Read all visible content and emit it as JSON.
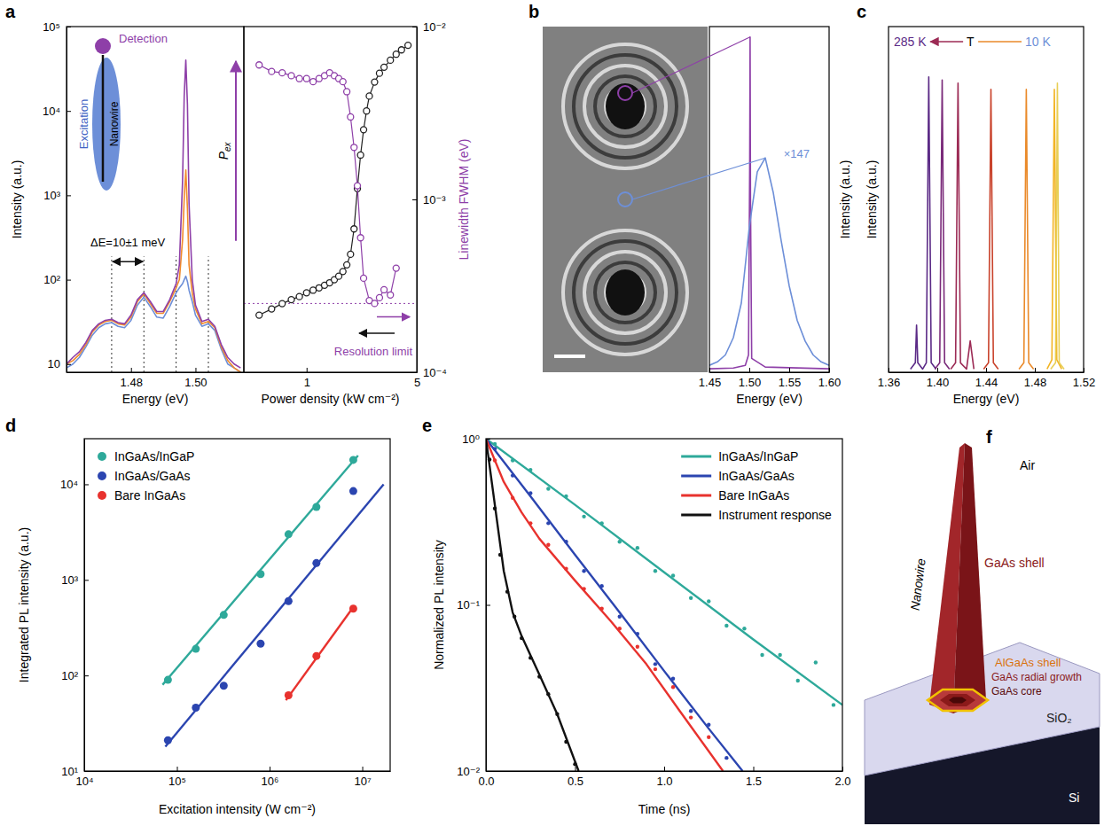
{
  "chart_data": [
    {
      "label": "a",
      "type": "line",
      "x_label": "Energy (eV)",
      "y_label": "Intensity (a.u.)",
      "log": "y",
      "xlim": [
        1.46,
        1.515
      ],
      "xticks": [
        1.48,
        {
          "value": 1.5,
          "label": "1.50"
        }
      ],
      "ylim": [
        8,
        100000
      ],
      "yticks": [
        10,
        {
          "value": 100,
          "label": "10²"
        },
        {
          "value": 1000,
          "label": "10³"
        },
        {
          "value": 10000,
          "label": "10⁴"
        },
        {
          "value": 100000,
          "label": "10⁵"
        }
      ],
      "x": [
        1.46,
        1.462,
        1.464,
        1.466,
        1.468,
        1.47,
        1.472,
        1.474,
        1.476,
        1.478,
        1.48,
        1.482,
        1.484,
        1.486,
        1.488,
        1.49,
        1.492,
        1.494,
        1.495,
        1.496,
        1.4965,
        1.497,
        1.4975,
        1.498,
        1.499,
        1.5,
        1.502,
        1.504,
        1.506,
        1.508,
        1.51,
        1.512,
        1.514
      ],
      "series": [
        {
          "color": "#6d8fd8",
          "values": [
            9,
            10,
            12,
            16,
            22,
            27,
            30,
            31,
            28,
            27,
            33,
            50,
            62,
            48,
            36,
            35,
            48,
            70,
            80,
            90,
            100,
            110,
            95,
            75,
            55,
            38,
            28,
            30,
            25,
            15,
            10,
            9,
            8
          ]
        },
        {
          "color": "#f08a2c",
          "values": [
            10,
            11,
            13,
            17,
            24,
            29,
            32,
            33,
            30,
            29,
            36,
            55,
            68,
            52,
            40,
            40,
            55,
            80,
            100,
            300,
            900,
            2000,
            700,
            150,
            70,
            45,
            30,
            32,
            27,
            16,
            11,
            9,
            8
          ]
        },
        {
          "color": "#8e3fa8",
          "values": [
            10,
            12,
            14,
            18,
            25,
            30,
            33,
            34,
            31,
            30,
            38,
            58,
            70,
            55,
            42,
            42,
            58,
            90,
            150,
            1500,
            15000,
            40000,
            12000,
            800,
            100,
            50,
            32,
            34,
            28,
            17,
            12,
            10,
            9
          ]
        }
      ],
      "peak_energies": [
        1.474,
        1.484,
        1.494,
        1.504
      ],
      "annotation": "ΔE=10±1 meV",
      "inset": {
        "detection": "Detection",
        "excitation": "Excitation",
        "nanowire": "Nanowire",
        "power": "P",
        "power_subscript": "ex"
      }
    },
    {
      "type": "scatter",
      "log": true,
      "marker": "open-circle",
      "line_style": "solid",
      "x_label": "Power density (kW cm⁻²)",
      "y2_label": "Linewidth FWHM (eV)",
      "xlim": [
        0.4,
        5
      ],
      "xticks": [
        1,
        5
      ],
      "ylim": [
        8,
        100000
      ],
      "y2lim": [
        0.0001,
        0.01
      ],
      "y2ticks": [
        {
          "value": 0.0001,
          "label": "10⁻⁴"
        },
        {
          "value": 0.001,
          "label": "10⁻³"
        },
        {
          "value": 0.01,
          "label": "10⁻²"
        }
      ],
      "series": [
        {
          "color": "#222222",
          "x": [
            0.5,
            0.6,
            0.7,
            0.8,
            0.9,
            1,
            1.1,
            1.2,
            1.3,
            1.4,
            1.5,
            1.6,
            1.7,
            1.8,
            1.9,
            2,
            2.1,
            2.2,
            2.3,
            2.4,
            2.5,
            2.7,
            2.9,
            3.1,
            3.4,
            3.7,
            4,
            4.4
          ],
          "values": [
            38,
            45,
            52,
            58,
            63,
            70,
            75,
            80,
            86,
            92,
            100,
            110,
            125,
            150,
            200,
            400,
            1200,
            3000,
            6000,
            10000,
            15000,
            22000,
            28000,
            33000,
            40000,
            47000,
            53000,
            60000
          ]
        },
        {
          "color": "#8e3fa8",
          "axis": "y2",
          "x": [
            0.5,
            0.6,
            0.7,
            0.8,
            0.9,
            1,
            1.1,
            1.2,
            1.3,
            1.4,
            1.5,
            1.6,
            1.7,
            1.8,
            1.9,
            2,
            2.1,
            2.2,
            2.3,
            2.5,
            2.7,
            2.9,
            3.1,
            3.4,
            3.7
          ],
          "values": [
            0.006,
            0.0055,
            0.0054,
            0.0052,
            0.005,
            0.005,
            0.0048,
            0.005,
            0.0052,
            0.0054,
            0.0052,
            0.005,
            0.0048,
            0.0042,
            0.003,
            0.002,
            0.0012,
            0.0006,
            0.00035,
            0.00026,
            0.00025,
            0.00027,
            0.0003,
            0.00028,
            0.0004
          ]
        }
      ],
      "resolution_limit": 0.00025,
      "annotation": "Resolution limit"
    },
    {
      "label": "b",
      "type": "line",
      "x_label": "Energy (eV)",
      "y_label": "Intensity (a.u.)",
      "xlim": [
        1.45,
        1.6
      ],
      "xticks": [
        1.45,
        {
          "value": 1.5,
          "label": "1.50"
        },
        1.55,
        {
          "value": 1.6,
          "label": "1.60"
        }
      ],
      "ylim": [
        0,
        1
      ],
      "tick_labels": "x",
      "series": [
        {
          "color": "#8e3fa8",
          "x": [
            1.45,
            1.48,
            1.495,
            1.499,
            1.5005,
            1.501,
            1.5015,
            1.503,
            1.52,
            1.6
          ],
          "values": [
            0.01,
            0.012,
            0.02,
            0.05,
            0.6,
            0.97,
            0.5,
            0.04,
            0.015,
            0.01
          ]
        },
        {
          "color": "#6d8fd8",
          "x": [
            1.45,
            1.46,
            1.47,
            1.48,
            1.49,
            1.5,
            1.51,
            1.52,
            1.53,
            1.54,
            1.55,
            1.56,
            1.57,
            1.58,
            1.59,
            1.6
          ],
          "values": [
            0.02,
            0.03,
            0.05,
            0.1,
            0.2,
            0.42,
            0.58,
            0.62,
            0.52,
            0.38,
            0.25,
            0.15,
            0.09,
            0.05,
            0.03,
            0.02
          ],
          "scale_label": "×147"
        }
      ]
    },
    {
      "label": "c",
      "type": "line",
      "x_label": "Energy (eV)",
      "y_label": "Intensity (a.u.)",
      "xlim": [
        1.36,
        1.52
      ],
      "xticks": [
        1.36,
        {
          "value": 1.4,
          "label": "1.40"
        },
        1.44,
        1.48,
        1.52
      ],
      "ylim": [
        0,
        1.1
      ],
      "tick_labels": "x",
      "annotations": [
        "285 K",
        "T",
        "10 K"
      ],
      "series": [
        {
          "color": "#5b2a86",
          "x": [
            1.378,
            1.382,
            1.383,
            1.384,
            1.388,
            1.391,
            1.393,
            1.395,
            1.399
          ],
          "values": [
            0.01,
            0.03,
            0.15,
            0.03,
            0.01,
            0.03,
            0.94,
            0.03,
            0.01
          ]
        },
        {
          "color": "#7a2a7a",
          "x": [
            1.398,
            1.402,
            1.404,
            1.406,
            1.41
          ],
          "values": [
            0.01,
            0.03,
            0.93,
            0.03,
            0.01
          ]
        },
        {
          "color": "#9c2b55",
          "x": [
            1.411,
            1.415,
            1.417,
            1.419,
            1.424,
            1.427,
            1.43
          ],
          "values": [
            0.01,
            0.03,
            0.92,
            0.03,
            0.01,
            0.1,
            0.01
          ]
        },
        {
          "color": "#c9432c",
          "x": [
            1.438,
            1.442,
            1.444,
            1.446,
            1.45
          ],
          "values": [
            0.01,
            0.03,
            0.9,
            0.03,
            0.01
          ]
        },
        {
          "color": "#ea8a2a",
          "x": [
            1.467,
            1.471,
            1.473,
            1.475,
            1.479
          ],
          "values": [
            0.01,
            0.03,
            0.9,
            0.03,
            0.01
          ]
        },
        {
          "color": "#f2b424",
          "x": [
            1.49,
            1.494,
            1.496,
            1.498,
            1.502
          ],
          "values": [
            0.01,
            0.04,
            0.9,
            0.04,
            0.01
          ]
        },
        {
          "color": "#e8cf55",
          "x": [
            1.493,
            1.497,
            1.4985,
            1.5,
            1.504
          ],
          "values": [
            0.01,
            0.03,
            0.92,
            0.03,
            0.01
          ]
        }
      ]
    },
    {
      "label": "d",
      "type": "scatter",
      "log": true,
      "marker": "circle",
      "legend": "upper left",
      "x_label": "Excitation intensity (W cm⁻²)",
      "y_label": "Integrated PL intensity (a.u.)",
      "xlim": [
        10000,
        20000000
      ],
      "xticks": [
        {
          "value": 10000,
          "label": "10⁴"
        },
        {
          "value": 100000,
          "label": "10⁵"
        },
        {
          "value": 1000000,
          "label": "10⁶"
        },
        {
          "value": 10000000,
          "label": "10⁷"
        }
      ],
      "ylim": [
        10,
        30000
      ],
      "yticks": [
        {
          "value": 10,
          "label": "10¹"
        },
        {
          "value": 100,
          "label": "10²"
        },
        {
          "value": 1000,
          "label": "10³"
        },
        {
          "value": 10000,
          "label": "10⁴"
        }
      ],
      "series": [
        {
          "name": "InGaAs/InGaP",
          "color": "#2ea99a",
          "x": [
            80000,
            160000,
            320000,
            800000,
            1600000,
            3200000,
            8000000
          ],
          "values": [
            90,
            190,
            430,
            1150,
            3000,
            5800,
            18000
          ],
          "fit_x": [
            70000,
            9000000
          ],
          "fit_values": [
            80,
            20000
          ]
        },
        {
          "name": "InGaAs/GaAs",
          "color": "#2b45b0",
          "x": [
            80000,
            160000,
            320000,
            800000,
            1600000,
            3200000,
            8000000
          ],
          "values": [
            21,
            46,
            78,
            215,
            600,
            1500,
            8500
          ],
          "fit_x": [
            75000,
            17000000
          ],
          "fit_values": [
            18,
            10000
          ]
        },
        {
          "name": "Bare InGaAs",
          "color": "#e8322e",
          "x": [
            1600000,
            3200000,
            8000000
          ],
          "values": [
            62,
            160,
            500
          ],
          "fit_x": [
            1500000,
            8000000
          ],
          "fit_values": [
            55,
            520
          ]
        }
      ]
    },
    {
      "label": "e",
      "type": "scatter",
      "log": "y",
      "marker": "circle",
      "legend": "upper right",
      "x_label": "Time (ns)",
      "y_label": "Normalized PL intensity",
      "xlim": [
        0,
        2
      ],
      "xticks": [
        {
          "value": 0,
          "label": "0.0"
        },
        0.5,
        {
          "value": 1,
          "label": "1.0"
        },
        1.5,
        {
          "value": 2,
          "label": "2.0"
        }
      ],
      "ylim": [
        0.01,
        1
      ],
      "yticks": [
        {
          "value": 0.01,
          "label": "10⁻²"
        },
        {
          "value": 0.1,
          "label": "10⁻¹"
        },
        {
          "value": 1,
          "label": "10⁰"
        }
      ],
      "series": [
        {
          "name": "InGaAs/InGaP",
          "color": "#2ea99a",
          "x": [
            0.05,
            0.15,
            0.25,
            0.35,
            0.45,
            0.55,
            0.65,
            0.75,
            0.85,
            0.95,
            1.05,
            1.15,
            1.25,
            1.35,
            1.45,
            1.55,
            1.65,
            1.75,
            1.85,
            1.95
          ],
          "values": [
            0.93,
            0.74,
            0.65,
            0.5,
            0.45,
            0.34,
            0.31,
            0.24,
            0.22,
            0.16,
            0.15,
            0.11,
            0.105,
            0.075,
            0.072,
            0.05,
            0.05,
            0.035,
            0.045,
            0.025
          ],
          "fit_x": [
            0,
            0.5,
            1,
            1.5,
            2
          ],
          "fit_values": [
            1,
            0.4,
            0.157,
            0.062,
            0.025
          ]
        },
        {
          "name": "InGaAs/GaAs",
          "color": "#2b45b0",
          "x": [
            0.05,
            0.15,
            0.25,
            0.35,
            0.45,
            0.55,
            0.65,
            0.75,
            0.85,
            0.95,
            1.05,
            1.15,
            1.25,
            1.35
          ],
          "values": [
            0.87,
            0.6,
            0.47,
            0.31,
            0.24,
            0.16,
            0.13,
            0.085,
            0.067,
            0.044,
            0.036,
            0.023,
            0.019,
            0.012
          ],
          "fit_x": [
            0,
            0.25,
            0.5,
            0.75,
            1,
            1.25,
            1.44
          ],
          "fit_values": [
            1,
            0.45,
            0.2,
            0.09,
            0.04,
            0.018,
            0.01
          ]
        },
        {
          "name": "Bare InGaAs",
          "color": "#e8322e",
          "x": [
            0.05,
            0.15,
            0.25,
            0.35,
            0.45,
            0.55,
            0.65,
            0.75,
            0.85,
            0.95,
            1.05,
            1.15,
            1.25
          ],
          "values": [
            0.74,
            0.44,
            0.31,
            0.23,
            0.165,
            0.125,
            0.095,
            0.072,
            0.056,
            0.041,
            0.032,
            0.021,
            0.016
          ],
          "fit_x": [
            0,
            0.1,
            0.2,
            0.3,
            0.5,
            0.7,
            0.9,
            1.1,
            1.33
          ],
          "fit_values": [
            1,
            0.55,
            0.36,
            0.25,
            0.14,
            0.08,
            0.044,
            0.022,
            0.01
          ]
        },
        {
          "name": "Instrument response",
          "color": "#111111",
          "x": [
            0.02,
            0.05,
            0.08,
            0.12,
            0.16,
            0.2,
            0.25,
            0.3,
            0.35,
            0.4,
            0.45,
            0.5
          ],
          "values": [
            0.75,
            0.38,
            0.2,
            0.12,
            0.085,
            0.063,
            0.048,
            0.037,
            0.029,
            0.022,
            0.015,
            0.011
          ],
          "fit_x": [
            0,
            0.05,
            0.1,
            0.15,
            0.2,
            0.3,
            0.4,
            0.52
          ],
          "fit_values": [
            1,
            0.4,
            0.16,
            0.09,
            0.065,
            0.038,
            0.022,
            0.01
          ]
        }
      ]
    },
    {
      "label": "f",
      "type": "diagram",
      "labels": {
        "air": "Air",
        "nanowire": "Nanowire",
        "gaas_shell": "GaAs shell",
        "algaas_shell": "AlGaAs shell",
        "radial": "GaAs radial growth",
        "core": "GaAs core",
        "sio2": "SiO₂",
        "si": "Si"
      }
    }
  ]
}
